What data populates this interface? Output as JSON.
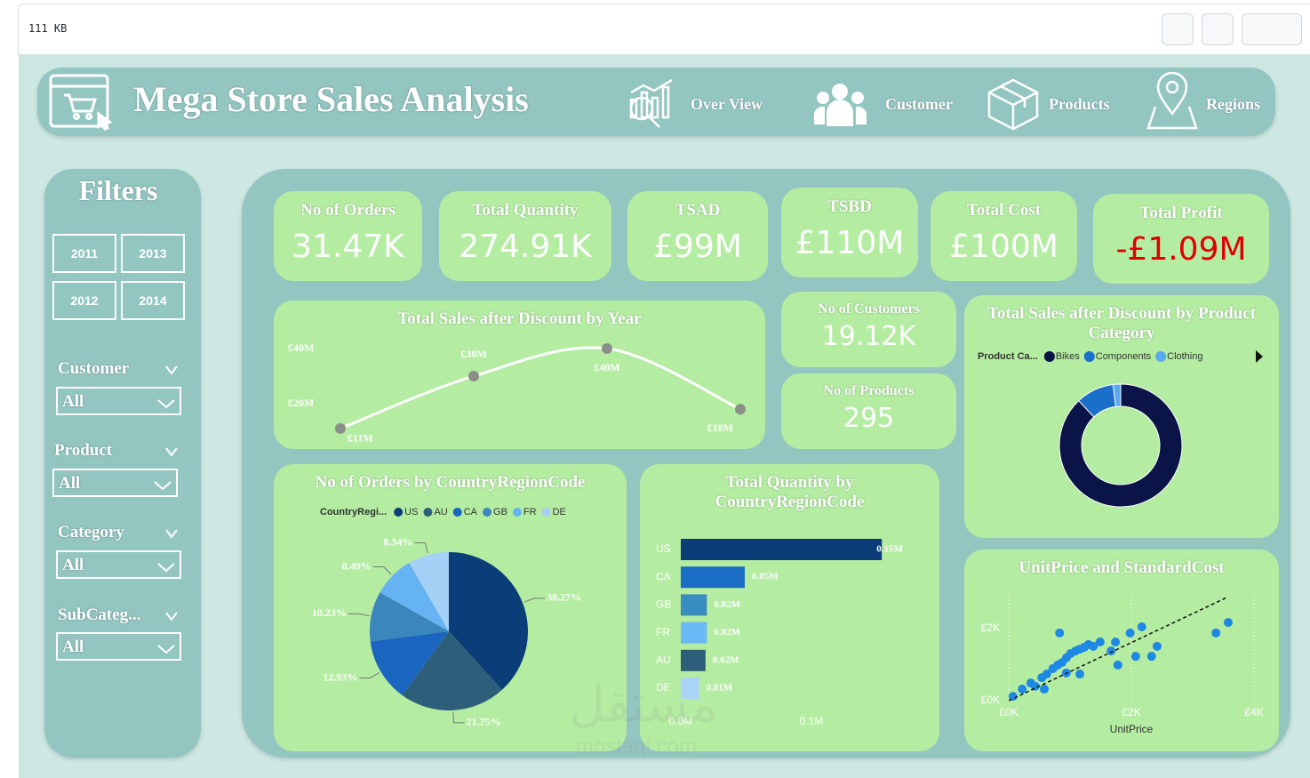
{
  "toolbar": {
    "file_size": "111 KB"
  },
  "header": {
    "title": "Mega Store Sales Analysis",
    "nav": [
      "Over View",
      "Customer",
      "Products",
      "Regions"
    ]
  },
  "filters": {
    "title": "Filters",
    "years": [
      "2011",
      "2013",
      "2012",
      "2014"
    ],
    "slicers": [
      {
        "label": "Customer",
        "value": "All"
      },
      {
        "label": "Product",
        "value": "All"
      },
      {
        "label": "Category",
        "value": "All"
      },
      {
        "label": "SubCateg...",
        "value": "All"
      }
    ]
  },
  "kpis": [
    {
      "label": "No of Orders",
      "value": "31.47K"
    },
    {
      "label": "Total Quantity",
      "value": "274.91K"
    },
    {
      "label": "TSAD",
      "value": "£99M"
    },
    {
      "label": "TSBD",
      "value": "£110M"
    },
    {
      "label": "Total Cost",
      "value": "£100M"
    },
    {
      "label": "Total Profit",
      "value": "-£1.09M",
      "color": "#e00000"
    }
  ],
  "side_kpis": [
    {
      "label": "No of Customers",
      "value": "19.12K"
    },
    {
      "label": "No of Products",
      "value": "295"
    }
  ],
  "watermark": [
    "مستقل",
    "mostaql.com"
  ],
  "chart_data": [
    {
      "type": "line",
      "title": "Total Sales after Discount by Year",
      "categories": [
        null,
        null,
        null,
        null
      ],
      "values": [
        11,
        30,
        40,
        18
      ],
      "value_labels": [
        "£11M",
        "£30M",
        "£40M",
        "£18M"
      ],
      "ylim": [
        8,
        44
      ],
      "yticks": [
        {
          "value": 20,
          "label": "£20M"
        },
        {
          "value": 40,
          "label": "£40M"
        }
      ],
      "color": "#ffffff",
      "point_color": "#8a8f8a"
    },
    {
      "type": "pie",
      "title": "No of Orders by CountryRegionCode",
      "legend_title": "CountryRegi...",
      "categories": [
        "US",
        "AU",
        "CA",
        "GB",
        "FR",
        "DE"
      ],
      "values": [
        38.27,
        21.75,
        12.93,
        10.23,
        8.49,
        8.34
      ],
      "value_labels": [
        "38.27%",
        "21.75%",
        "12.93%",
        "10.23%",
        "8.49%",
        "8.34%"
      ],
      "colors": [
        "#0b3d78",
        "#2e5f7a",
        "#1a65bf",
        "#3a86bd",
        "#66b3f3",
        "#a6d1f6"
      ]
    },
    {
      "type": "bar",
      "orientation": "horizontal",
      "title": "Total Quantity by CountryRegionCode",
      "categories": [
        "US",
        "CA",
        "GB",
        "FR",
        "AU",
        "DE"
      ],
      "values": [
        0.154,
        0.049,
        0.02,
        0.02,
        0.019,
        0.014
      ],
      "value_labels": [
        "0.15M",
        "0.05M",
        "0.02M",
        "0.02M",
        "0.02M",
        "0.01M"
      ],
      "colors": [
        "#0b3d78",
        "#1a6dc4",
        "#3a8dc0",
        "#6ab8f5",
        "#2e5f7a",
        "#a9d4f7"
      ],
      "xlim": [
        0,
        0.16
      ],
      "xticks": [
        {
          "value": 0,
          "label": "0.0M"
        },
        {
          "value": 0.1,
          "label": "0.1M"
        }
      ]
    },
    {
      "type": "donut",
      "title": "Total Sales after Discount by Product Category",
      "legend_title": "Product Ca...",
      "categories": [
        "Bikes",
        "Components",
        "Clothing"
      ],
      "values": [
        88,
        10,
        2
      ],
      "colors": [
        "#0b1447",
        "#1a6fc9",
        "#5aa9f0"
      ]
    },
    {
      "type": "scatter",
      "title": "UnitPrice and StandardCost",
      "xlabel": "UnitPrice",
      "color": "#1e88e5",
      "x": [
        0.07,
        0.22,
        0.36,
        0.43,
        0.54,
        0.62,
        0.72,
        0.8,
        0.87,
        0.94,
        1.01,
        1.09,
        1.16,
        1.23,
        1.3,
        1.38,
        0.83,
        1.49,
        1.74,
        1.78,
        1.98,
        2.07,
        2.17,
        2.33,
        2.42,
        3.38,
        3.58,
        0.94,
        1.16,
        0.58,
        1.67
      ],
      "values": [
        0.12,
        0.32,
        0.49,
        0.4,
        0.64,
        0.74,
        0.89,
        0.99,
        1.06,
        1.19,
        1.31,
        1.38,
        1.43,
        1.48,
        1.56,
        1.51,
        1.88,
        1.63,
        1.63,
        0.99,
        1.88,
        1.23,
        2.05,
        1.23,
        1.51,
        1.88,
        2.17,
        0.77,
        0.74,
        0.32,
        1.38
      ],
      "trendline": {
        "x": [
          0,
          3.55
        ],
        "values": [
          0,
          2.86
        ]
      },
      "xlim": [
        0,
        4
      ],
      "ylim": [
        0,
        3
      ],
      "xticks": [
        {
          "value": 0,
          "label": "£0K"
        },
        {
          "value": 2,
          "label": "£2K"
        },
        {
          "value": 4,
          "label": "£4K"
        }
      ],
      "yticks": [
        {
          "value": 0,
          "label": "£0K"
        },
        {
          "value": 2,
          "label": "£2K"
        }
      ]
    }
  ]
}
